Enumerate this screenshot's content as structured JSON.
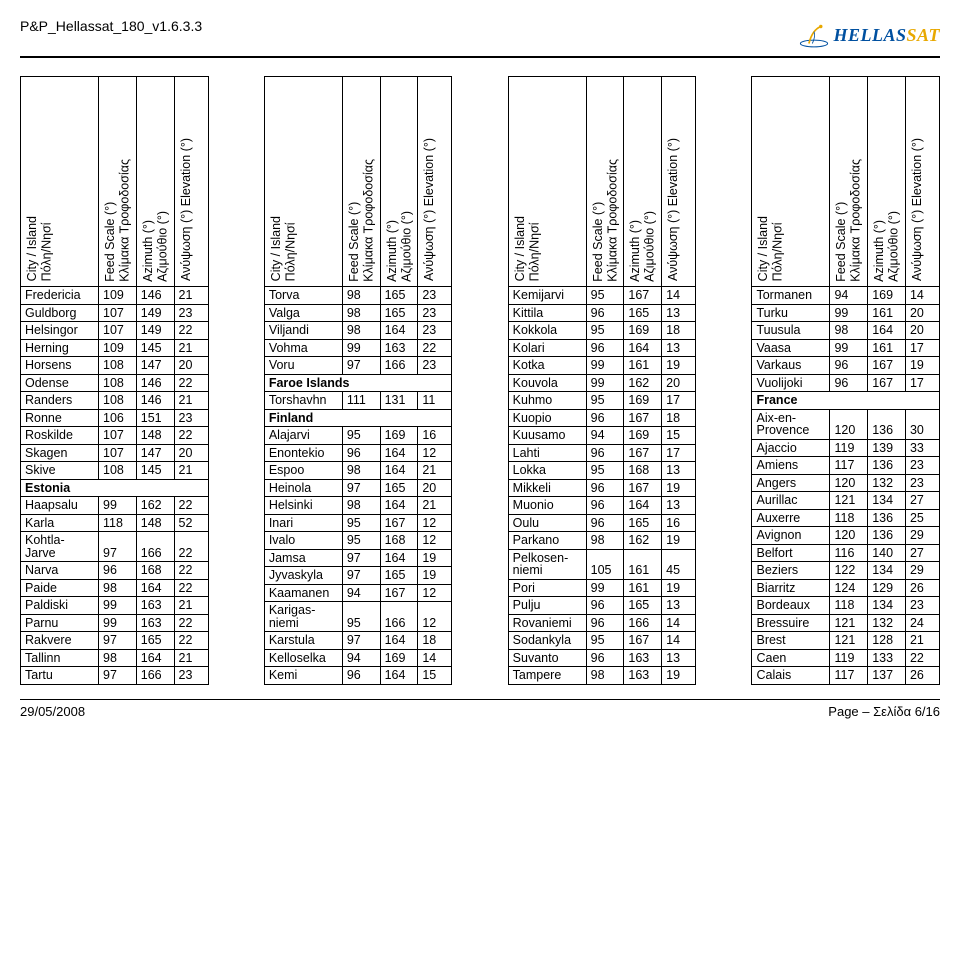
{
  "doc_title": "P&P_Hellassat_180_v1.6.3.3",
  "logo": {
    "hella": "HELLAS",
    "sat": "SAT"
  },
  "footer": {
    "date": "29/05/2008",
    "page": "Page – Σελίδα 6/16"
  },
  "headers": {
    "city": "City / Island\nΠόλη/Νησί",
    "feed": "Feed Scale (°)\nΚλίμακα Τροφοδοσίας",
    "azimuth": "Azimuth (°)\nΑζιμούθιο (°)",
    "elevation": "Ανύψωση (°) Elevation (°)"
  },
  "columns": [
    [
      {
        "t": "r",
        "c": "Fredericia",
        "f": "109",
        "a": "146",
        "e": "21"
      },
      {
        "t": "r",
        "c": "Guldborg",
        "f": "107",
        "a": "149",
        "e": "23"
      },
      {
        "t": "r",
        "c": "Helsingor",
        "f": "107",
        "a": "149",
        "e": "22"
      },
      {
        "t": "r",
        "c": "Herning",
        "f": "109",
        "a": "145",
        "e": "21"
      },
      {
        "t": "r",
        "c": "Horsens",
        "f": "108",
        "a": "147",
        "e": "20"
      },
      {
        "t": "r",
        "c": "Odense",
        "f": "108",
        "a": "146",
        "e": "22"
      },
      {
        "t": "r",
        "c": "Randers",
        "f": "108",
        "a": "146",
        "e": "21"
      },
      {
        "t": "r",
        "c": "Ronne",
        "f": "106",
        "a": "151",
        "e": "23"
      },
      {
        "t": "r",
        "c": "Roskilde",
        "f": "107",
        "a": "148",
        "e": "22"
      },
      {
        "t": "r",
        "c": "Skagen",
        "f": "107",
        "a": "147",
        "e": "20"
      },
      {
        "t": "r",
        "c": "Skive",
        "f": "108",
        "a": "145",
        "e": "21"
      },
      {
        "t": "s",
        "c": "Estonia"
      },
      {
        "t": "r",
        "c": "Haapsalu",
        "f": "99",
        "a": "162",
        "e": "22"
      },
      {
        "t": "r",
        "c": "Karla",
        "f": "118",
        "a": "148",
        "e": "52"
      },
      {
        "t": "r",
        "c": "Kohtla-\nJarve",
        "f": "97",
        "a": "166",
        "e": "22"
      },
      {
        "t": "r",
        "c": "Narva",
        "f": "96",
        "a": "168",
        "e": "22"
      },
      {
        "t": "r",
        "c": "Paide",
        "f": "98",
        "a": "164",
        "e": "22"
      },
      {
        "t": "r",
        "c": "Paldiski",
        "f": "99",
        "a": "163",
        "e": "21"
      },
      {
        "t": "r",
        "c": "Parnu",
        "f": "99",
        "a": "163",
        "e": "22"
      },
      {
        "t": "r",
        "c": "Rakvere",
        "f": "97",
        "a": "165",
        "e": "22"
      },
      {
        "t": "r",
        "c": "Tallinn",
        "f": "98",
        "a": "164",
        "e": "21"
      },
      {
        "t": "r",
        "c": "Tartu",
        "f": "97",
        "a": "166",
        "e": "23"
      }
    ],
    [
      {
        "t": "r",
        "c": "Torva",
        "f": "98",
        "a": "165",
        "e": "23"
      },
      {
        "t": "r",
        "c": "Valga",
        "f": "98",
        "a": "165",
        "e": "23"
      },
      {
        "t": "r",
        "c": "Viljandi",
        "f": "98",
        "a": "164",
        "e": "23"
      },
      {
        "t": "r",
        "c": "Vohma",
        "f": "99",
        "a": "163",
        "e": "22"
      },
      {
        "t": "r",
        "c": "Voru",
        "f": "97",
        "a": "166",
        "e": "23"
      },
      {
        "t": "s",
        "c": "Faroe Islands"
      },
      {
        "t": "r",
        "c": "Torshavhn",
        "f": "111",
        "a": "131",
        "e": "11"
      },
      {
        "t": "s",
        "c": "Finland"
      },
      {
        "t": "r",
        "c": "Alajarvi",
        "f": "95",
        "a": "169",
        "e": "16"
      },
      {
        "t": "r",
        "c": "Enontekio",
        "f": "96",
        "a": "164",
        "e": "12"
      },
      {
        "t": "r",
        "c": "Espoo",
        "f": "98",
        "a": "164",
        "e": "21"
      },
      {
        "t": "r",
        "c": "Heinola",
        "f": "97",
        "a": "165",
        "e": "20"
      },
      {
        "t": "r",
        "c": "Helsinki",
        "f": "98",
        "a": "164",
        "e": "21"
      },
      {
        "t": "r",
        "c": "Inari",
        "f": "95",
        "a": "167",
        "e": "12"
      },
      {
        "t": "r",
        "c": "Ivalo",
        "f": "95",
        "a": "168",
        "e": "12"
      },
      {
        "t": "r",
        "c": "Jamsa",
        "f": "97",
        "a": "164",
        "e": "19"
      },
      {
        "t": "r",
        "c": "Jyvaskyla",
        "f": "97",
        "a": "165",
        "e": "19"
      },
      {
        "t": "r",
        "c": "Kaamanen",
        "f": "94",
        "a": "167",
        "e": "12"
      },
      {
        "t": "r",
        "c": "Karigas-\nniemi",
        "f": "95",
        "a": "166",
        "e": "12"
      },
      {
        "t": "r",
        "c": "Karstula",
        "f": "97",
        "a": "164",
        "e": "18"
      },
      {
        "t": "r",
        "c": "Kelloselka",
        "f": "94",
        "a": "169",
        "e": "14"
      },
      {
        "t": "r",
        "c": "Kemi",
        "f": "96",
        "a": "164",
        "e": "15"
      }
    ],
    [
      {
        "t": "r",
        "c": "Kemijarvi",
        "f": "95",
        "a": "167",
        "e": "14"
      },
      {
        "t": "r",
        "c": "Kittila",
        "f": "96",
        "a": "165",
        "e": "13"
      },
      {
        "t": "r",
        "c": "Kokkola",
        "f": "95",
        "a": "169",
        "e": "18"
      },
      {
        "t": "r",
        "c": "Kolari",
        "f": "96",
        "a": "164",
        "e": "13"
      },
      {
        "t": "r",
        "c": "Kotka",
        "f": "99",
        "a": "161",
        "e": "19"
      },
      {
        "t": "r",
        "c": "Kouvola",
        "f": "99",
        "a": "162",
        "e": "20"
      },
      {
        "t": "r",
        "c": "Kuhmo",
        "f": "95",
        "a": "169",
        "e": "17"
      },
      {
        "t": "r",
        "c": "Kuopio",
        "f": "96",
        "a": "167",
        "e": "18"
      },
      {
        "t": "r",
        "c": "Kuusamo",
        "f": "94",
        "a": "169",
        "e": "15"
      },
      {
        "t": "r",
        "c": "Lahti",
        "f": "96",
        "a": "167",
        "e": "17"
      },
      {
        "t": "r",
        "c": "Lokka",
        "f": "95",
        "a": "168",
        "e": "13"
      },
      {
        "t": "r",
        "c": "Mikkeli",
        "f": "96",
        "a": "167",
        "e": "19"
      },
      {
        "t": "r",
        "c": "Muonio",
        "f": "96",
        "a": "164",
        "e": "13"
      },
      {
        "t": "r",
        "c": "Oulu",
        "f": "96",
        "a": "165",
        "e": "16"
      },
      {
        "t": "r",
        "c": "Parkano",
        "f": "98",
        "a": "162",
        "e": "19"
      },
      {
        "t": "r",
        "c": "Pelkosen-\nniemi",
        "f": "105",
        "a": "161",
        "e": "45"
      },
      {
        "t": "r",
        "c": "Pori",
        "f": "99",
        "a": "161",
        "e": "19"
      },
      {
        "t": "r",
        "c": "Pulju",
        "f": "96",
        "a": "165",
        "e": "13"
      },
      {
        "t": "r",
        "c": "Rovaniemi",
        "f": "96",
        "a": "166",
        "e": "14"
      },
      {
        "t": "r",
        "c": "Sodankyla",
        "f": "95",
        "a": "167",
        "e": "14"
      },
      {
        "t": "r",
        "c": "Suvanto",
        "f": "96",
        "a": "163",
        "e": "13"
      },
      {
        "t": "r",
        "c": "Tampere",
        "f": "98",
        "a": "163",
        "e": "19"
      }
    ],
    [
      {
        "t": "r",
        "c": "Tormanen",
        "f": "94",
        "a": "169",
        "e": "14"
      },
      {
        "t": "r",
        "c": "Turku",
        "f": "99",
        "a": "161",
        "e": "20"
      },
      {
        "t": "r",
        "c": "Tuusula",
        "f": "98",
        "a": "164",
        "e": "20"
      },
      {
        "t": "r",
        "c": "Vaasa",
        "f": "99",
        "a": "161",
        "e": "17"
      },
      {
        "t": "r",
        "c": "Varkaus",
        "f": "96",
        "a": "167",
        "e": "19"
      },
      {
        "t": "r",
        "c": "Vuolijoki",
        "f": "96",
        "a": "167",
        "e": "17"
      },
      {
        "t": "s",
        "c": "France"
      },
      {
        "t": "r",
        "c": "Aix-en-\nProvence",
        "f": "120",
        "a": "136",
        "e": "30"
      },
      {
        "t": "r",
        "c": "Ajaccio",
        "f": "119",
        "a": "139",
        "e": "33"
      },
      {
        "t": "r",
        "c": "Amiens",
        "f": "117",
        "a": "136",
        "e": "23"
      },
      {
        "t": "r",
        "c": "Angers",
        "f": "120",
        "a": "132",
        "e": "23"
      },
      {
        "t": "r",
        "c": "Aurillac",
        "f": "121",
        "a": "134",
        "e": "27"
      },
      {
        "t": "r",
        "c": "Auxerre",
        "f": "118",
        "a": "136",
        "e": "25"
      },
      {
        "t": "r",
        "c": "Avignon",
        "f": "120",
        "a": "136",
        "e": "29"
      },
      {
        "t": "r",
        "c": "Belfort",
        "f": "116",
        "a": "140",
        "e": "27"
      },
      {
        "t": "r",
        "c": "Beziers",
        "f": "122",
        "a": "134",
        "e": "29"
      },
      {
        "t": "r",
        "c": "Biarritz",
        "f": "124",
        "a": "129",
        "e": "26"
      },
      {
        "t": "r",
        "c": "Bordeaux",
        "f": "118",
        "a": "134",
        "e": "23"
      },
      {
        "t": "r",
        "c": "Bressuire",
        "f": "121",
        "a": "132",
        "e": "24"
      },
      {
        "t": "r",
        "c": "Brest",
        "f": "121",
        "a": "128",
        "e": "21"
      },
      {
        "t": "r",
        "c": "Caen",
        "f": "119",
        "a": "133",
        "e": "22"
      },
      {
        "t": "r",
        "c": "Calais",
        "f": "117",
        "a": "137",
        "e": "26"
      }
    ]
  ]
}
